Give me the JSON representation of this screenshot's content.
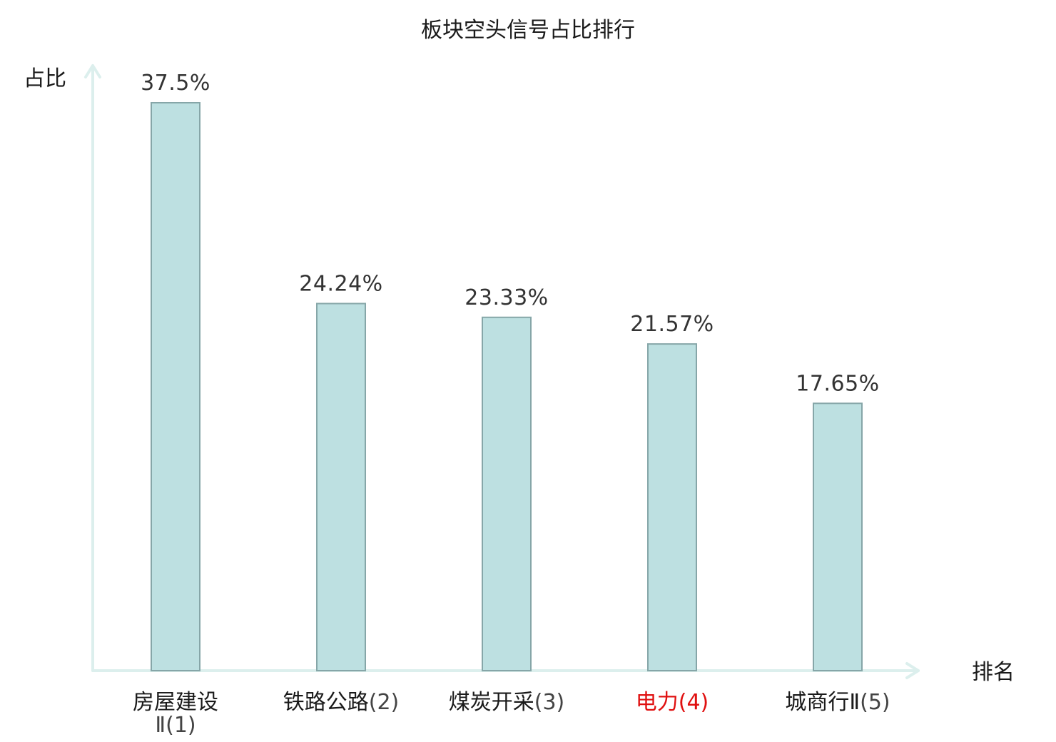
{
  "chart_data": {
    "type": "bar",
    "title": "板块空头信号占比排行",
    "ylabel": "占比",
    "xlabel": "排名",
    "categories": [
      {
        "name": "房屋建设",
        "rank": "Ⅱ(1)",
        "highlight": false
      },
      {
        "name": "铁路公路",
        "rank": "(2)",
        "highlight": false
      },
      {
        "name": "煤炭开采",
        "rank": "(3)",
        "highlight": false
      },
      {
        "name": "电力",
        "rank": "(4)",
        "highlight": true
      },
      {
        "name": "城商行Ⅱ",
        "rank": "(5)",
        "highlight": false
      }
    ],
    "values": [
      37.5,
      24.24,
      23.33,
      21.57,
      17.65
    ],
    "value_labels": [
      "37.5%",
      "24.24%",
      "23.33%",
      "21.57%",
      "17.65%"
    ],
    "ylim": [
      0,
      37.5
    ],
    "grid": false,
    "colors": {
      "bar_fill": "#bde0e1",
      "bar_stroke": "#86a6a8",
      "axis": "#dcefed",
      "highlight_text": "#e01010"
    }
  }
}
